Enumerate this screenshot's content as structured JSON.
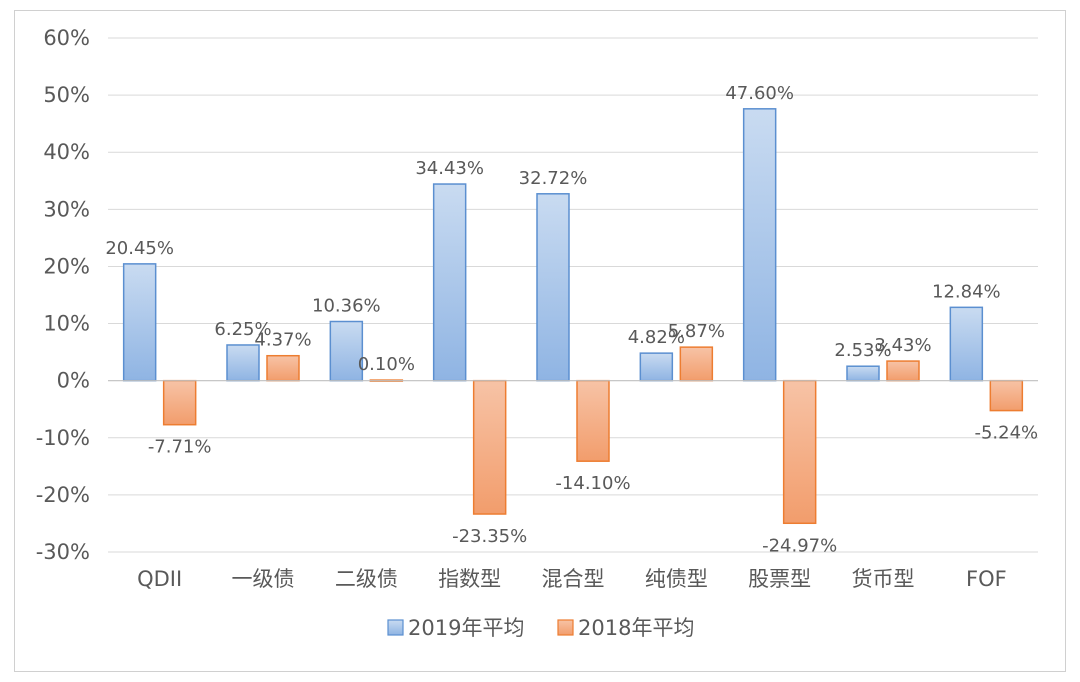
{
  "chart_data": {
    "type": "bar",
    "categories": [
      "QDII",
      "一级债",
      "二级债",
      "指数型",
      "混合型",
      "纯债型",
      "股票型",
      "货币型",
      "FOF"
    ],
    "series": [
      {
        "name": "2019年平均",
        "values": [
          20.45,
          6.25,
          10.36,
          34.43,
          32.72,
          4.82,
          47.6,
          2.53,
          12.84
        ],
        "labels": [
          "20.45%",
          "6.25%",
          "10.36%",
          "34.43%",
          "32.72%",
          "4.82%",
          "47.60%",
          "2.53%",
          "12.84%"
        ],
        "fill_top": "#c9dbf1",
        "fill_bottom": "#8fb4e3",
        "stroke": "#5b8fd0"
      },
      {
        "name": "2018年平均",
        "values": [
          -7.71,
          4.37,
          0.1,
          -23.35,
          -14.1,
          5.87,
          -24.97,
          3.43,
          -5.24
        ],
        "labels": [
          "-7.71%",
          "4.37%",
          "0.10%",
          "-23.35%",
          "-14.10%",
          "5.87%",
          "-24.97%",
          "3.43%",
          "-5.24%"
        ],
        "fill_top": "#f7c3a6",
        "fill_bottom": "#f29d6c",
        "stroke": "#ed7d31"
      }
    ],
    "ylim": [
      -30,
      60
    ],
    "yticks": [
      60,
      50,
      40,
      30,
      20,
      10,
      0,
      -10,
      -20,
      -30
    ],
    "ytick_labels": [
      "60%",
      "50%",
      "40%",
      "30%",
      "20%",
      "10%",
      "0%",
      "-10%",
      "-20%",
      "-30%"
    ],
    "grid": true,
    "legend": "bottom",
    "title": "",
    "xlabel": "",
    "ylabel": ""
  }
}
